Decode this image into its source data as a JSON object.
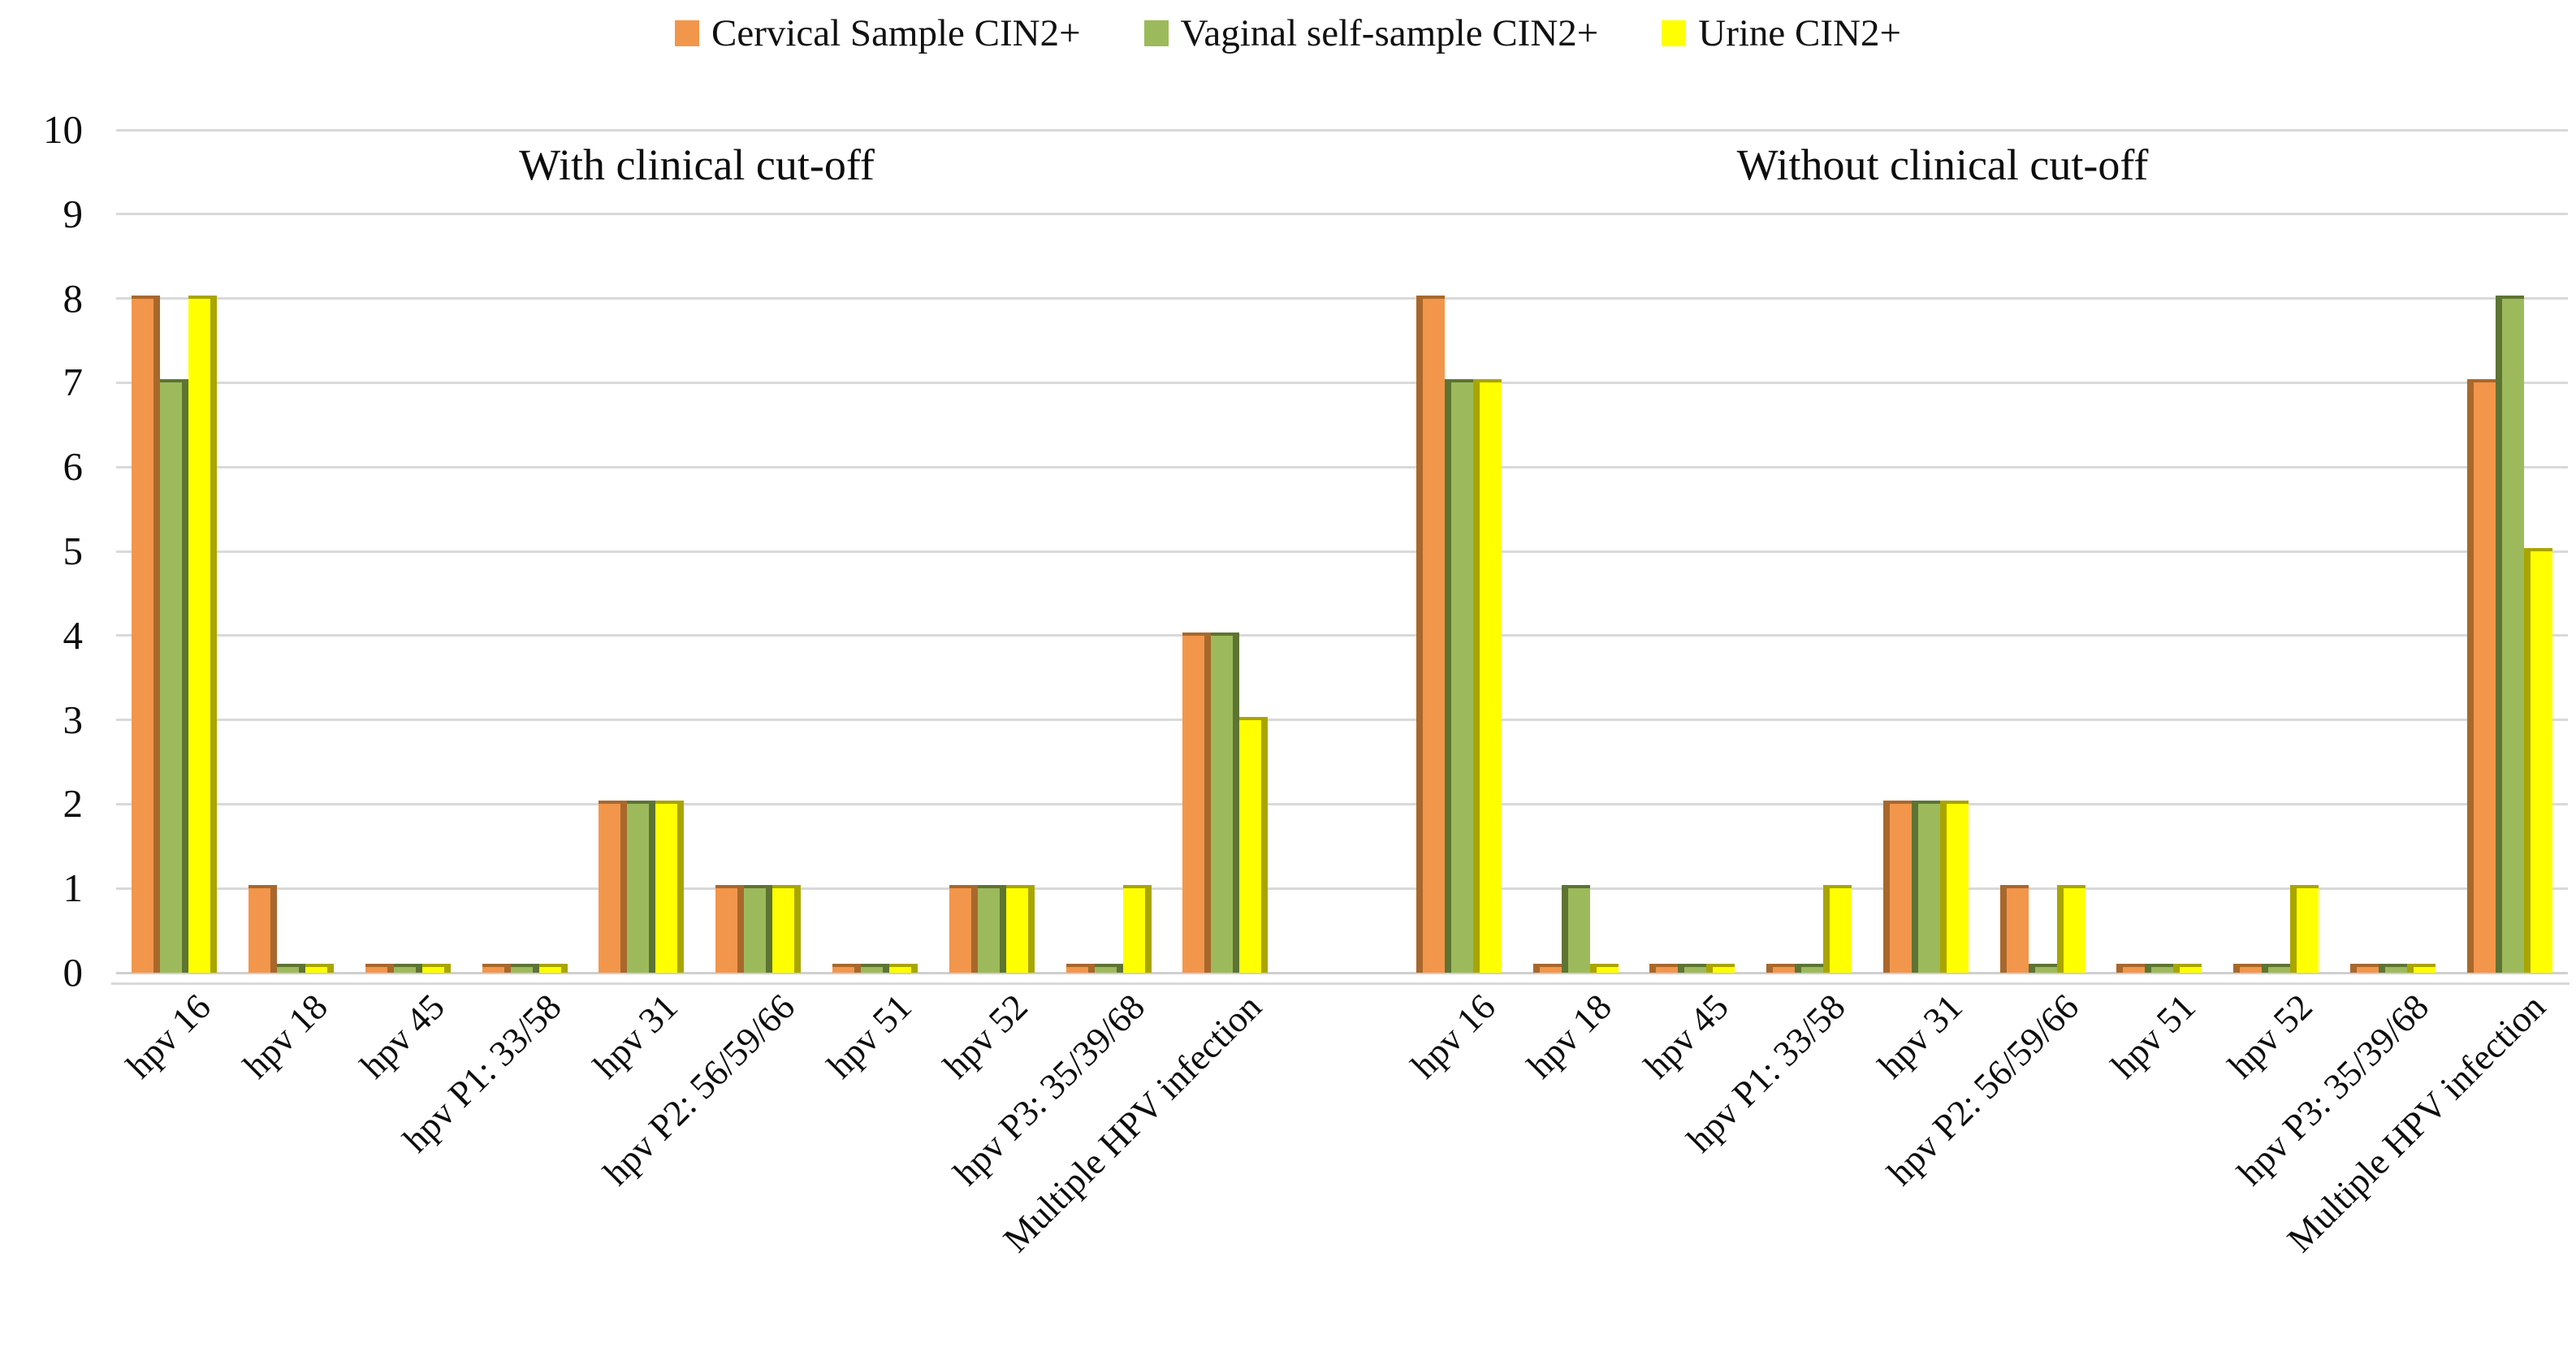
{
  "colors": {
    "cervical_fill": "#F2964B",
    "cervical_side": "#A8682C",
    "vaginal_fill": "#9CBA5B",
    "vaginal_side": "#5D7433",
    "urine_fill": "#FFFF00",
    "urine_side": "#A9A500",
    "gridline": "#D9D9D9",
    "axis_line": "#CFCFCF",
    "text": "#0D0D0D"
  },
  "legend": {
    "items": [
      {
        "label": "Cervical Sample CIN2+",
        "color_key": "cervical"
      },
      {
        "label": "Vaginal self-sample CIN2+",
        "color_key": "vaginal"
      },
      {
        "label": "Urine CIN2+",
        "color_key": "urine"
      }
    ]
  },
  "chart_data": {
    "type": "bar",
    "title": "",
    "xlabel": "",
    "ylabel": "",
    "ylim": [
      0,
      10
    ],
    "yticks": [
      0,
      1,
      2,
      3,
      4,
      5,
      6,
      7,
      8,
      9,
      10
    ],
    "grid": true,
    "legend_position": "top-center",
    "bar_shade_side": [
      "right",
      "left"
    ],
    "categories": [
      "hpv 16",
      "hpv 18",
      "hpv 45",
      "hpv P1: 33/58",
      "hpv 31",
      "hpv P2: 56/59/66",
      "hpv 51",
      "hpv 52",
      "hpv P3: 35/39/68",
      "Multiple HPV infection"
    ],
    "panels": [
      {
        "title": "With clinical cut-off",
        "series": [
          {
            "name": "Cervical Sample CIN2+",
            "values": [
              8,
              1,
              0,
              0,
              2,
              1,
              0,
              1,
              0,
              4
            ]
          },
          {
            "name": "Vaginal self-sample CIN2+",
            "values": [
              7,
              0,
              0,
              0,
              2,
              1,
              0,
              1,
              0,
              4
            ]
          },
          {
            "name": "Urine CIN2+",
            "values": [
              8,
              0,
              0,
              0,
              2,
              1,
              0,
              1,
              1,
              3
            ]
          }
        ]
      },
      {
        "title": "Without clinical cut-off",
        "series": [
          {
            "name": "Cervical Sample CIN2+",
            "values": [
              8,
              0,
              0,
              0,
              2,
              1,
              0,
              0,
              0,
              7
            ]
          },
          {
            "name": "Vaginal self-sample CIN2+",
            "values": [
              7,
              1,
              0,
              0,
              2,
              0,
              0,
              0,
              0,
              8
            ]
          },
          {
            "name": "Urine CIN2+",
            "values": [
              7,
              0,
              0,
              1,
              2,
              1,
              0,
              1,
              0,
              5
            ]
          }
        ]
      }
    ]
  }
}
